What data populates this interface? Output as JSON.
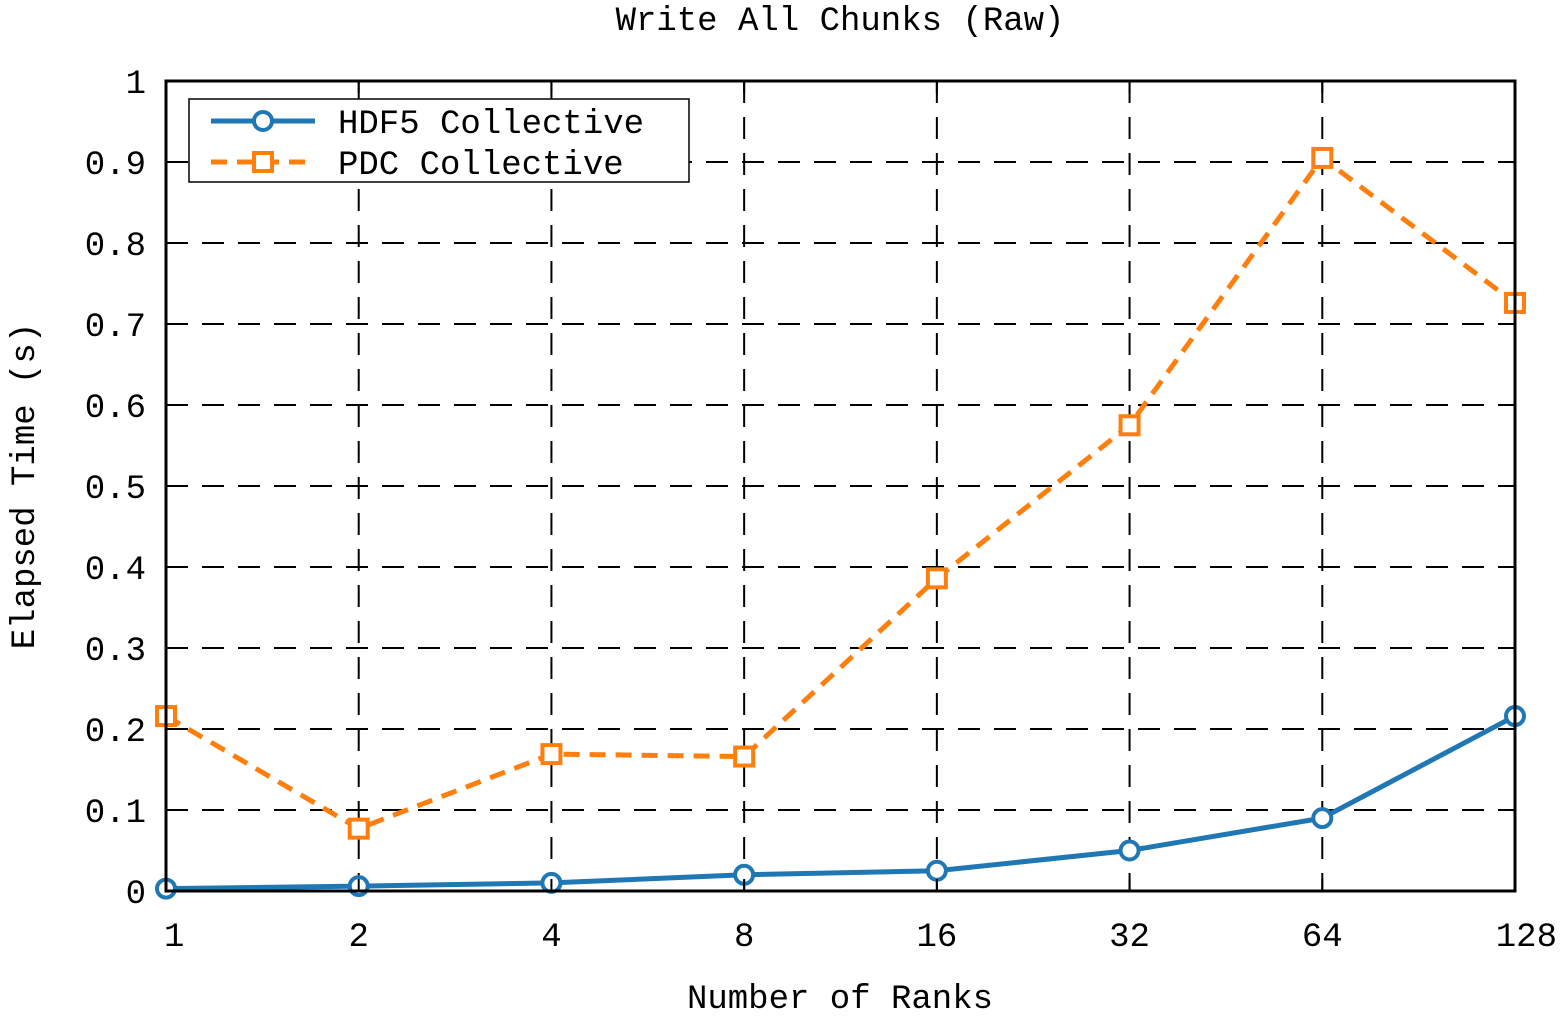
{
  "chart_data": {
    "type": "line",
    "title": "Write All Chunks (Raw)",
    "xlabel": "Number of Ranks",
    "ylabel": "Elapsed Time (s)",
    "x_scale": "log2",
    "categories": [
      "1",
      "2",
      "4",
      "8",
      "16",
      "32",
      "64",
      "128"
    ],
    "x": [
      1,
      2,
      4,
      8,
      16,
      32,
      64,
      128
    ],
    "ylim": [
      0,
      1
    ],
    "y_ticks": [
      "0",
      "0.1",
      "0.2",
      "0.3",
      "0.4",
      "0.5",
      "0.6",
      "0.7",
      "0.8",
      "0.9",
      "1"
    ],
    "grid": true,
    "grid_style": "dashed",
    "legend_position": "top-left",
    "series": [
      {
        "name": "HDF5 Collective",
        "color": "#1f77b4",
        "marker": "circle",
        "line_style": "solid",
        "values": [
          0.003,
          0.006,
          0.01,
          0.02,
          0.025,
          0.05,
          0.09,
          0.216
        ]
      },
      {
        "name": "PDC Collective",
        "color": "#ff7f0e",
        "marker": "square",
        "line_style": "dashed",
        "values": [
          0.216,
          0.077,
          0.169,
          0.166,
          0.386,
          0.575,
          0.905,
          0.726
        ]
      }
    ]
  }
}
